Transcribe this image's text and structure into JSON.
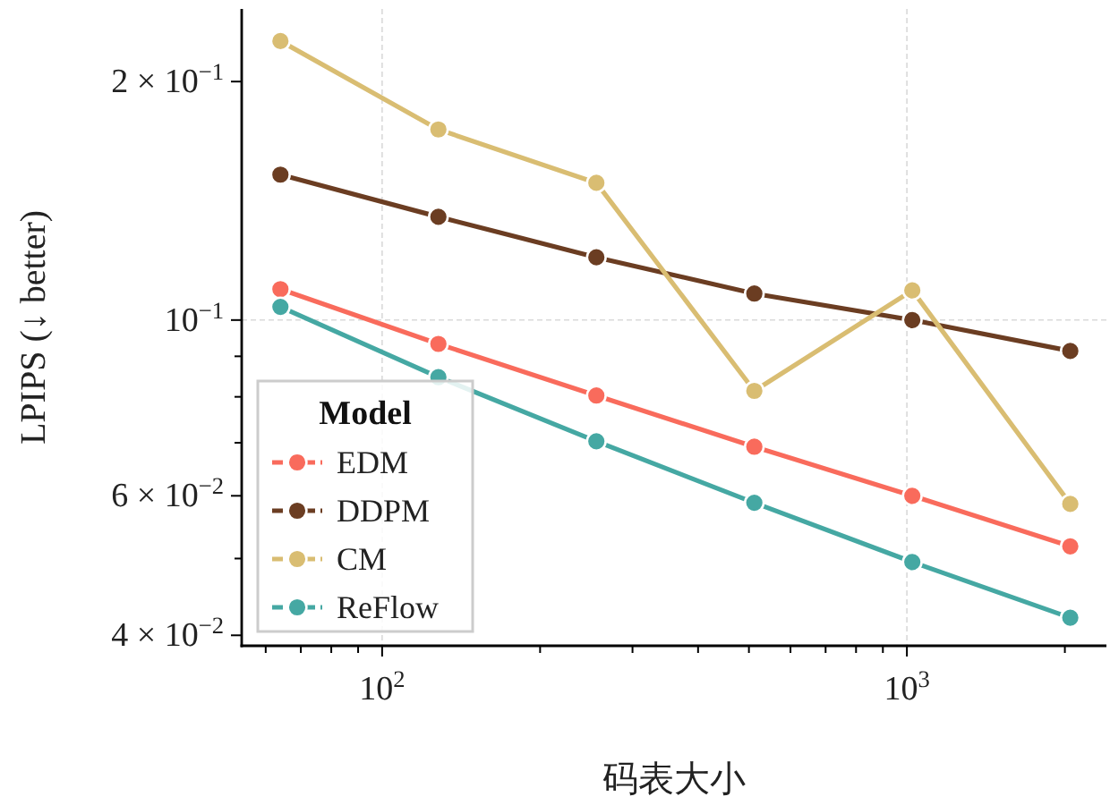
{
  "chart_data": {
    "type": "line",
    "xlabel": "码表大小",
    "ylabel": "LPIPS (↓ better)",
    "legend_title": "Model",
    "x": [
      64,
      128,
      256,
      512,
      1024,
      2048
    ],
    "series": [
      {
        "name": "EDM",
        "color": "#f96b5c",
        "values": [
          0.1094,
          0.0933,
          0.0803,
          0.0692,
          0.06,
          0.0518
        ]
      },
      {
        "name": "DDPM",
        "color": "#6b3d22",
        "values": [
          0.1526,
          0.135,
          0.12,
          0.108,
          0.1,
          0.0914
        ]
      },
      {
        "name": "CM",
        "color": "#d9bd72",
        "values": [
          0.225,
          0.174,
          0.149,
          0.0814,
          0.109,
          0.0586
        ]
      },
      {
        "name": "ReFlow",
        "color": "#45a8a3",
        "values": [
          0.1039,
          0.0847,
          0.0703,
          0.0588,
          0.0495,
          0.0421
        ]
      }
    ],
    "log": "xy",
    "xlim": [
      54,
      2400
    ],
    "ylim": [
      0.0388,
      0.247
    ],
    "xticks": [
      {
        "value": 60,
        "label": null
      },
      {
        "value": 70,
        "label": null
      },
      {
        "value": 80,
        "label": null
      },
      {
        "value": 90,
        "label": null
      },
      {
        "value": 100,
        "label": "10$^{2}$"
      },
      {
        "value": 200,
        "label": null
      },
      {
        "value": 300,
        "label": null
      },
      {
        "value": 400,
        "label": null
      },
      {
        "value": 500,
        "label": null
      },
      {
        "value": 600,
        "label": null
      },
      {
        "value": 700,
        "label": null
      },
      {
        "value": 800,
        "label": null
      },
      {
        "value": 900,
        "label": null
      },
      {
        "value": 1000,
        "label": "10$^{3}$"
      },
      {
        "value": 2000,
        "label": null
      }
    ],
    "yticks": [
      {
        "value": 0.04,
        "label": "4 × 10$^{−2}$"
      },
      {
        "value": 0.05,
        "label": null
      },
      {
        "value": 0.06,
        "label": "6 × 10$^{−2}$"
      },
      {
        "value": 0.07,
        "label": null
      },
      {
        "value": 0.08,
        "label": null
      },
      {
        "value": 0.09,
        "label": null
      },
      {
        "value": 0.1,
        "label": "10$^{−1}$"
      },
      {
        "value": 0.2,
        "label": "2 × 10$^{−1}$"
      }
    ],
    "grid": true,
    "legend": "bottom left",
    "marker": "circle",
    "line_style": "solid"
  }
}
